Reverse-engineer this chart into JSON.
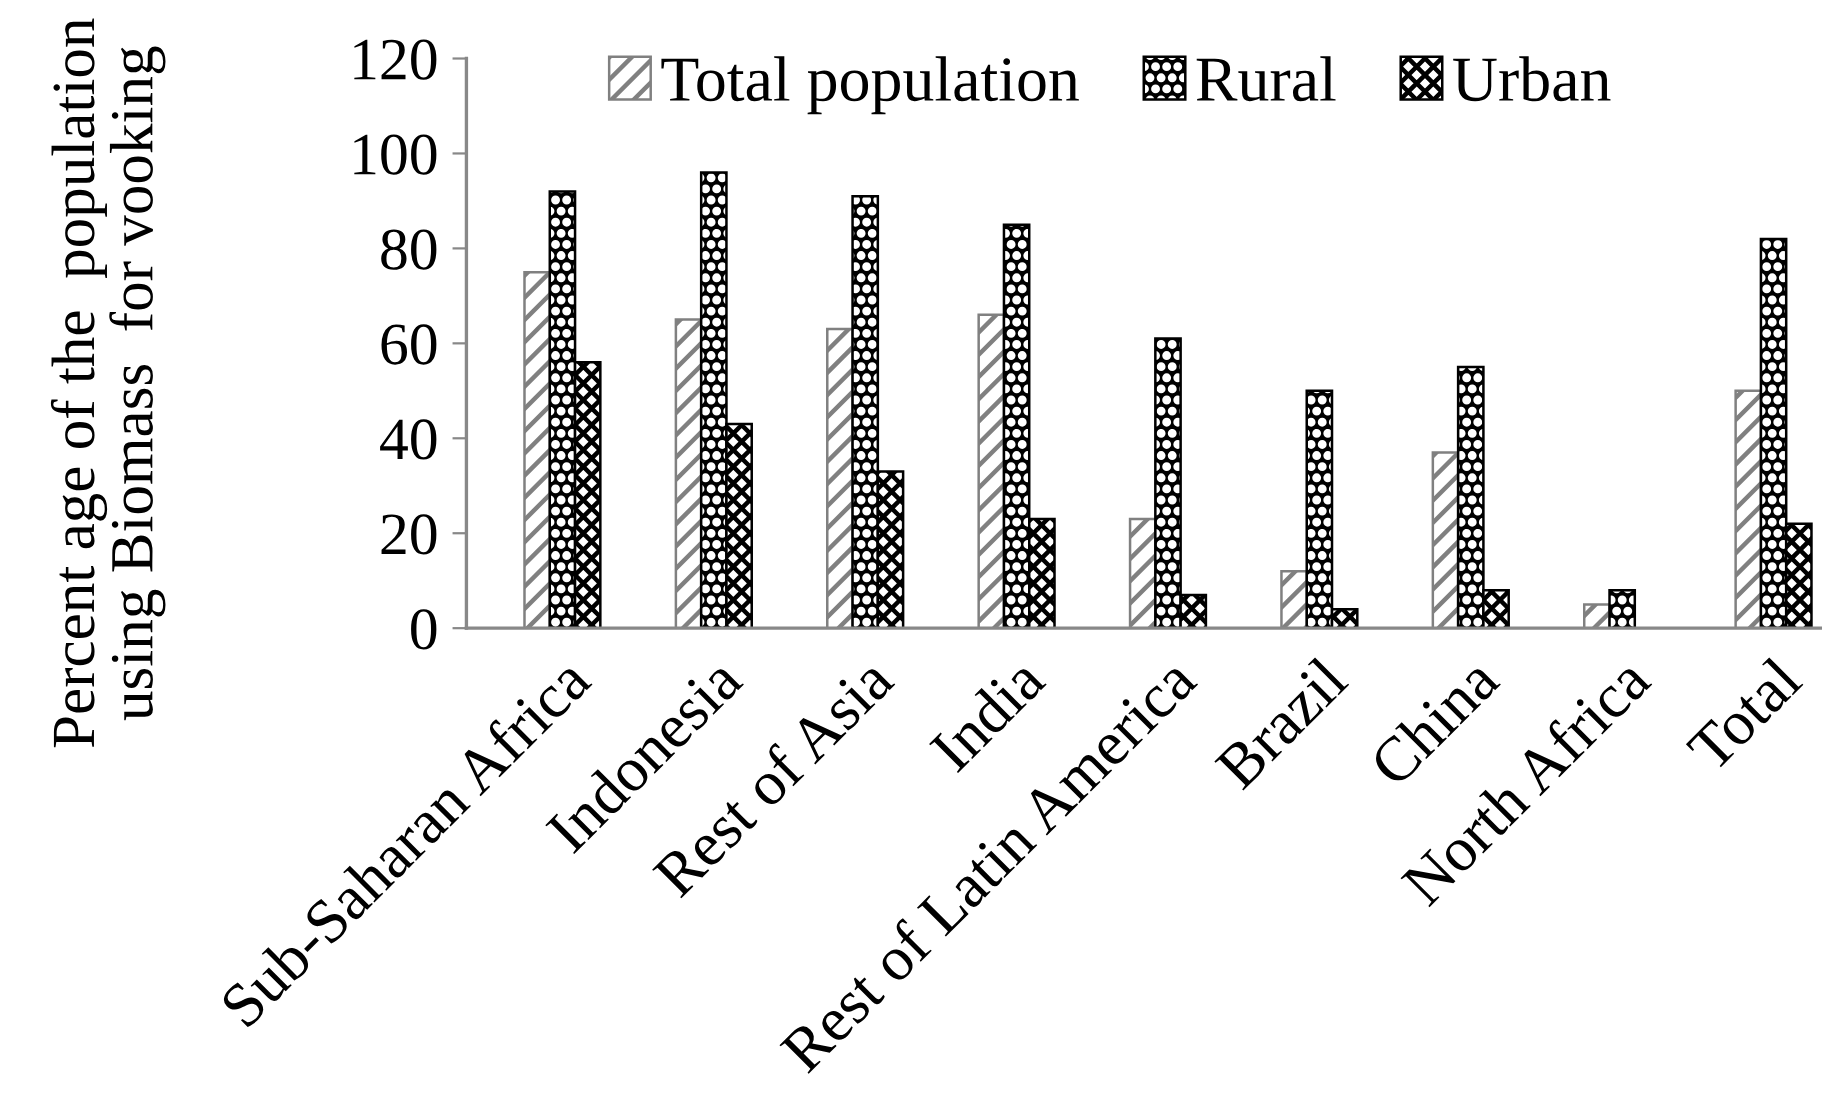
{
  "chart_data": {
    "type": "bar",
    "ylabel": "Percent age of the  population\nusing Biomass  for vooking",
    "categories": [
      "Sub-Saharan Africa",
      "Indonesia",
      "Rest of Asia",
      "India",
      "Rest of Latin America",
      "Brazil",
      "China",
      "North Africa",
      "Total"
    ],
    "series": [
      {
        "name": "Total population",
        "color": "#808080",
        "values": [
          75,
          65,
          63,
          66,
          23,
          12,
          37,
          5,
          50
        ]
      },
      {
        "name": "Rural",
        "color": "#000000",
        "values": [
          92,
          96,
          91,
          85,
          61,
          50,
          55,
          8,
          82
        ]
      },
      {
        "name": "Urban",
        "color": "#000000",
        "values": [
          56,
          43,
          33,
          23,
          7,
          4,
          8,
          null,
          22
        ]
      }
    ],
    "ylim": [
      0,
      120
    ],
    "yticks": [
      0,
      20,
      40,
      60,
      80,
      100,
      120
    ],
    "legend": "top"
  }
}
